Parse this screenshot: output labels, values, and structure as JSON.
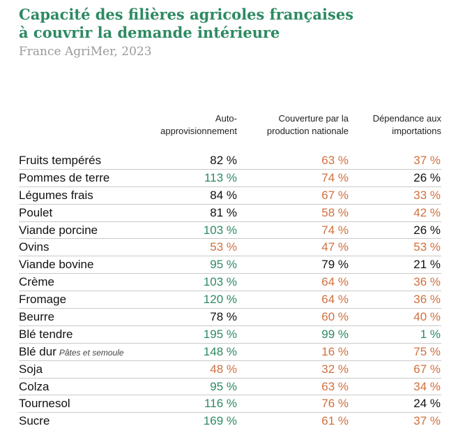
{
  "header": {
    "title_line1": "Capacité des filières agricoles françaises",
    "title_line2": "à couvrir la demande intérieure",
    "source": "France AgriMer, 2023"
  },
  "colors": {
    "green": "#2d8a63",
    "orange": "#d0703e",
    "dark": "#111111"
  },
  "chart_data": {
    "type": "table",
    "columns": [
      "Auto-\napprovisionnement",
      "Couverture par la\nproduction nationale",
      "Dépendance aux\nimportations"
    ],
    "rows": [
      {
        "label": "Fruits tempérés",
        "note": "",
        "values": [
          "82 %",
          "63 %",
          "37 %"
        ],
        "colors": [
          "dark",
          "orange",
          "orange"
        ]
      },
      {
        "label": "Pommes de terre",
        "note": "",
        "values": [
          "113 %",
          "74 %",
          "26 %"
        ],
        "colors": [
          "green",
          "orange",
          "dark"
        ]
      },
      {
        "label": "Légumes frais",
        "note": "",
        "values": [
          "84 %",
          "67 %",
          "33 %"
        ],
        "colors": [
          "dark",
          "orange",
          "orange"
        ]
      },
      {
        "label": "Poulet",
        "note": "",
        "values": [
          "81 %",
          "58 %",
          "42 %"
        ],
        "colors": [
          "dark",
          "orange",
          "orange"
        ]
      },
      {
        "label": "Viande porcine",
        "note": "",
        "values": [
          "103 %",
          "74 %",
          "26 %"
        ],
        "colors": [
          "green",
          "orange",
          "dark"
        ]
      },
      {
        "label": "Ovins",
        "note": "",
        "values": [
          "53 %",
          "47 %",
          "53 %"
        ],
        "colors": [
          "orange",
          "orange",
          "orange"
        ]
      },
      {
        "label": "Viande bovine",
        "note": "",
        "values": [
          "95 %",
          "79 %",
          "21 %"
        ],
        "colors": [
          "green",
          "dark",
          "dark"
        ]
      },
      {
        "label": "Crème",
        "note": "",
        "values": [
          "103 %",
          "64 %",
          "36 %"
        ],
        "colors": [
          "green",
          "orange",
          "orange"
        ]
      },
      {
        "label": "Fromage",
        "note": "",
        "values": [
          "120 %",
          "64 %",
          "36 %"
        ],
        "colors": [
          "green",
          "orange",
          "orange"
        ]
      },
      {
        "label": "Beurre",
        "note": "",
        "values": [
          "78 %",
          "60 %",
          "40 %"
        ],
        "colors": [
          "dark",
          "orange",
          "orange"
        ]
      },
      {
        "label": "Blé tendre",
        "note": "",
        "values": [
          "195 %",
          "99 %",
          "1 %"
        ],
        "colors": [
          "green",
          "green",
          "green"
        ]
      },
      {
        "label": "Blé dur",
        "note": "Pâtes et semoule",
        "values": [
          "148 %",
          "16 %",
          "75 %"
        ],
        "colors": [
          "green",
          "orange",
          "orange"
        ]
      },
      {
        "label": "Soja",
        "note": "",
        "values": [
          "48 %",
          "32 %",
          "67 %"
        ],
        "colors": [
          "orange",
          "orange",
          "orange"
        ]
      },
      {
        "label": "Colza",
        "note": "",
        "values": [
          "95 %",
          "63 %",
          "34 %"
        ],
        "colors": [
          "green",
          "orange",
          "orange"
        ]
      },
      {
        "label": "Tournesol",
        "note": "",
        "values": [
          "116 %",
          "76 %",
          "24 %"
        ],
        "colors": [
          "green",
          "orange",
          "dark"
        ]
      },
      {
        "label": "Sucre",
        "note": "",
        "values": [
          "169 %",
          "61 %",
          "37 %"
        ],
        "colors": [
          "green",
          "orange",
          "orange"
        ]
      }
    ]
  }
}
